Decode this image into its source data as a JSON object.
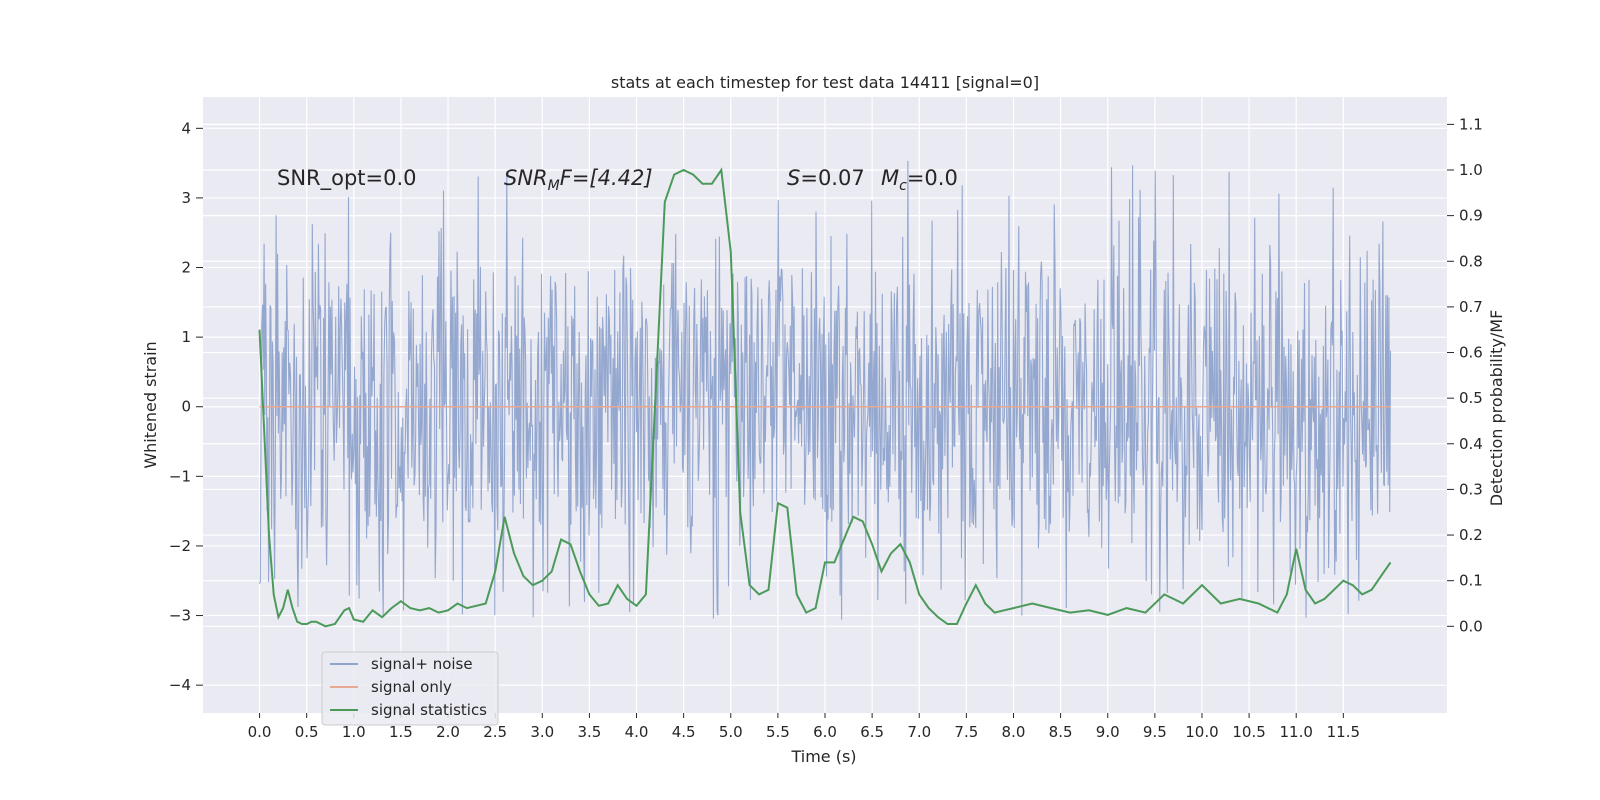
{
  "chart_data": {
    "type": "line",
    "title": "stats at each timestep for test data 14411 [signal=0]",
    "xlabel": "Time (s)",
    "ylabel_left": "Whitened strain",
    "ylabel_right": "Detection probability/MF",
    "xlim": [
      -0.6,
      12.6
    ],
    "ylim_left": [
      -4.4,
      4.45
    ],
    "ylim_right": [
      -0.19,
      1.16
    ],
    "xticks": [
      0.0,
      0.5,
      1.0,
      1.5,
      2.0,
      2.5,
      3.0,
      3.5,
      4.0,
      4.5,
      5.0,
      5.5,
      6.0,
      6.5,
      7.0,
      7.5,
      8.0,
      8.5,
      9.0,
      9.5,
      10.0,
      10.5,
      11.0,
      11.5
    ],
    "xtick_labels": [
      "0.0",
      "0.5",
      "1.0",
      "1.5",
      "2.0",
      "2.5",
      "3.0",
      "3.5",
      "4.0",
      "4.5",
      "5.0",
      "5.5",
      "6.0",
      "6.5",
      "7.0",
      "7.5",
      "8.0",
      "8.5",
      "9.0",
      "9.5",
      "10.0",
      "10.5",
      "11.0",
      "11.5"
    ],
    "yticks_left": [
      4,
      3,
      2,
      1,
      0,
      -1,
      -2,
      -3,
      -4
    ],
    "ytick_labels_left": [
      "4",
      "3",
      "2",
      "1",
      "0",
      "−1",
      "−2",
      "−3",
      "−4"
    ],
    "yticks_right": [
      1.1,
      1.0,
      0.9,
      0.8,
      0.7,
      0.6,
      0.5,
      0.4,
      0.3,
      0.2,
      0.1,
      0.0
    ],
    "ytick_labels_right": [
      "1.1",
      "1.0",
      "0.9",
      "0.8",
      "0.7",
      "0.6",
      "0.5",
      "0.4",
      "0.3",
      "0.2",
      "0.1",
      "0.0"
    ],
    "grid": true,
    "legend_position": "lower-left",
    "annotations": {
      "snr_opt": "SNR_opt=0.0",
      "snr_mf_main": "SNR",
      "snr_mf_sub": "M",
      "snr_mf_rest": "F=[4.42]",
      "s_main": "S",
      "s_rest": "=0.07",
      "mc_main": "M",
      "mc_sub": "c",
      "mc_rest": "=0.0"
    },
    "series": [
      {
        "name": "signal+ noise",
        "axis": "left",
        "color": "#8fa3cc",
        "t_range": [
          0.0,
          12.0
        ],
        "sample_count": 1500,
        "typical_range": [
          -1.8,
          2.0
        ],
        "envelope_range": [
          -3.9,
          4.1
        ]
      },
      {
        "name": "signal only",
        "axis": "left",
        "color": "#e8a891",
        "x": [
          0.0,
          12.0
        ],
        "y": [
          0.0,
          0.0
        ]
      },
      {
        "name": "signal statistics",
        "axis": "right",
        "color": "#4c9a5a",
        "x": [
          0.0,
          0.1,
          0.15,
          0.2,
          0.25,
          0.3,
          0.35,
          0.4,
          0.45,
          0.5,
          0.55,
          0.6,
          0.7,
          0.8,
          0.9,
          0.95,
          1.0,
          1.1,
          1.2,
          1.3,
          1.4,
          1.5,
          1.6,
          1.7,
          1.8,
          1.9,
          2.0,
          2.1,
          2.2,
          2.3,
          2.4,
          2.5,
          2.6,
          2.7,
          2.8,
          2.9,
          3.0,
          3.1,
          3.2,
          3.3,
          3.4,
          3.5,
          3.6,
          3.7,
          3.8,
          3.9,
          4.0,
          4.1,
          4.2,
          4.3,
          4.4,
          4.5,
          4.6,
          4.7,
          4.8,
          4.9,
          5.0,
          5.1,
          5.2,
          5.3,
          5.4,
          5.5,
          5.6,
          5.7,
          5.8,
          5.9,
          6.0,
          6.1,
          6.2,
          6.3,
          6.4,
          6.5,
          6.6,
          6.7,
          6.8,
          6.9,
          7.0,
          7.1,
          7.2,
          7.3,
          7.4,
          7.5,
          7.6,
          7.7,
          7.8,
          7.9,
          8.0,
          8.2,
          8.4,
          8.6,
          8.8,
          9.0,
          9.2,
          9.4,
          9.6,
          9.8,
          10.0,
          10.2,
          10.4,
          10.6,
          10.8,
          10.9,
          11.0,
          11.1,
          11.2,
          11.3,
          11.4,
          11.5,
          11.6,
          11.7,
          11.8,
          11.9,
          12.0
        ],
        "y": [
          0.65,
          0.2,
          0.07,
          0.02,
          0.04,
          0.08,
          0.04,
          0.01,
          0.005,
          0.005,
          0.01,
          0.01,
          0.0,
          0.005,
          0.035,
          0.04,
          0.015,
          0.01,
          0.035,
          0.02,
          0.04,
          0.055,
          0.04,
          0.035,
          0.04,
          0.03,
          0.035,
          0.05,
          0.04,
          0.045,
          0.05,
          0.12,
          0.24,
          0.16,
          0.11,
          0.09,
          0.1,
          0.12,
          0.19,
          0.18,
          0.12,
          0.07,
          0.045,
          0.05,
          0.09,
          0.06,
          0.045,
          0.07,
          0.5,
          0.93,
          0.99,
          1.0,
          0.99,
          0.97,
          0.97,
          1.0,
          0.82,
          0.25,
          0.09,
          0.07,
          0.08,
          0.27,
          0.26,
          0.07,
          0.03,
          0.04,
          0.14,
          0.14,
          0.19,
          0.24,
          0.23,
          0.18,
          0.12,
          0.16,
          0.18,
          0.14,
          0.07,
          0.04,
          0.02,
          0.005,
          0.005,
          0.05,
          0.09,
          0.05,
          0.03,
          0.035,
          0.04,
          0.05,
          0.04,
          0.03,
          0.035,
          0.025,
          0.04,
          0.03,
          0.07,
          0.05,
          0.09,
          0.05,
          0.06,
          0.05,
          0.03,
          0.07,
          0.17,
          0.08,
          0.05,
          0.06,
          0.08,
          0.1,
          0.09,
          0.07,
          0.08,
          0.11,
          0.14
        ]
      }
    ]
  }
}
